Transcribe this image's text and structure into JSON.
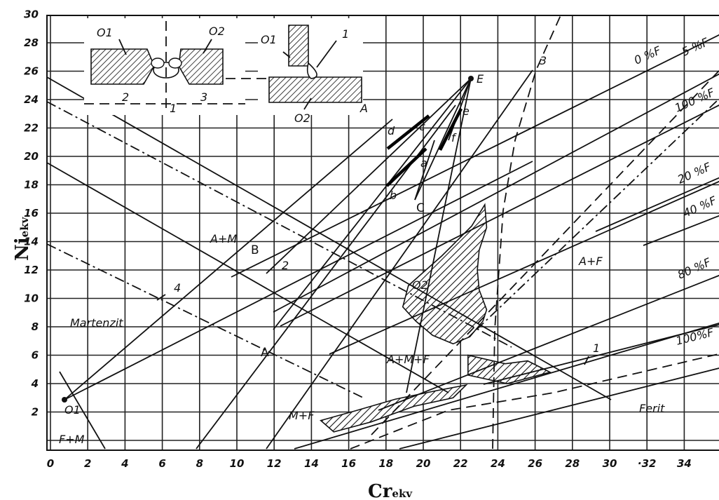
{
  "chart_data": {
    "type": "line",
    "title": "",
    "xlabel": "Cr",
    "xlabel_sub": "ekv",
    "ylabel": "Ni",
    "ylabel_sub": "ekv",
    "xlim": [
      0,
      36
    ],
    "ylim": [
      0,
      30
    ],
    "x_ticks": [
      "0",
      "2",
      "4",
      "6",
      "8",
      "10",
      "12",
      "14",
      "16",
      "18",
      "20",
      "22",
      "24",
      "26",
      "28",
      "30",
      "·32",
      "34"
    ],
    "y_ticks": [
      "2",
      "4",
      "6",
      "8",
      "10",
      "12",
      "14",
      "16",
      "18",
      "20",
      "22",
      "24",
      "26",
      "28",
      "30"
    ],
    "grid": true,
    "phase_labels": [
      {
        "id": "martenzit",
        "text": "Martenzit"
      },
      {
        "id": "a-m",
        "text": "A+M"
      },
      {
        "id": "a-f",
        "text": "A+F"
      },
      {
        "id": "a-m-f",
        "text": "A+M+F"
      },
      {
        "id": "m-f",
        "text": "M+F"
      },
      {
        "id": "f-m",
        "text": "F+M"
      },
      {
        "id": "ferit",
        "text": "Ferit"
      },
      {
        "id": "a-region-upper",
        "text": "A"
      },
      {
        "id": "a-region-lower",
        "text": "A"
      }
    ],
    "ferrite_lines": [
      {
        "label": "0 %F"
      },
      {
        "label": "5 %F"
      },
      {
        "label": "100 %F"
      },
      {
        "label": "20 %F"
      },
      {
        "label": "40 %F"
      },
      {
        "label": "80 %F"
      },
      {
        "label": "100%F"
      }
    ],
    "points": [
      {
        "label": "E",
        "x": 22.5,
        "y": 25.8
      },
      {
        "label": "O1",
        "x": 0.7,
        "y": 3.6
      },
      {
        "label": "O2",
        "x": 18.6,
        "y": 11.5
      },
      {
        "label": "B",
        "x": 12.0,
        "y": 13.9
      },
      {
        "label": "A",
        "x": 14.7,
        "y": 8.6
      },
      {
        "label": "C",
        "x": 19.3,
        "y": 17.0
      },
      {
        "label": "a",
        "x": 19.8,
        "y": 20.2
      },
      {
        "label": "b",
        "x": 17.6,
        "y": 17.8
      },
      {
        "label": "c",
        "x": 20.6,
        "y": 23.2
      },
      {
        "label": "d",
        "x": 17.8,
        "y": 21.6
      },
      {
        "label": "e",
        "x": 22.4,
        "y": 23.9
      },
      {
        "label": "f",
        "x": 21.1,
        "y": 20.4
      }
    ],
    "curve_labels": [
      {
        "label": "1"
      },
      {
        "label": "2"
      },
      {
        "label": "3"
      },
      {
        "label": "4"
      }
    ],
    "inset_labels": {
      "butt": [
        "O1",
        "O2",
        "1",
        "2",
        "3"
      ],
      "tee": [
        "O1",
        "1",
        "O2"
      ]
    },
    "inset_butt_labels": [
      {
        "label": "O1"
      },
      {
        "label": "O2"
      },
      {
        "label": "1"
      },
      {
        "label": "2"
      },
      {
        "label": "3"
      }
    ],
    "inset_tee_labels": [
      {
        "label": "O1"
      },
      {
        "label": "1"
      },
      {
        "label": "O2"
      }
    ]
  }
}
